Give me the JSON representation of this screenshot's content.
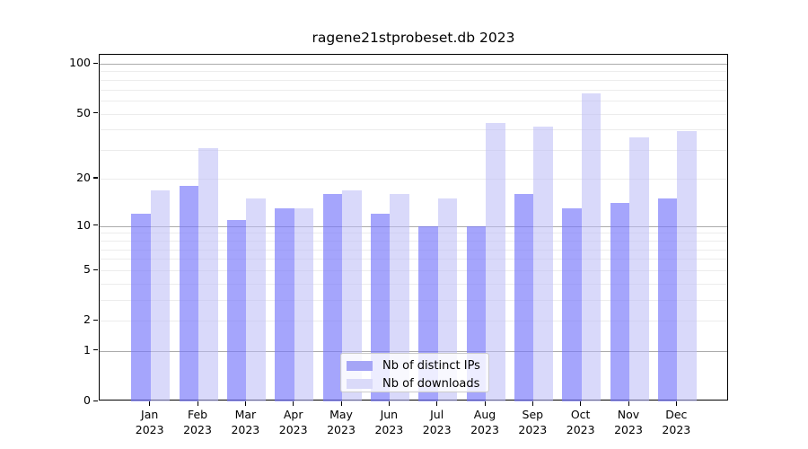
{
  "chart_data": {
    "type": "bar",
    "title": "ragene21stprobeset.db 2023",
    "categories": [
      {
        "month": "Jan",
        "year": "2023"
      },
      {
        "month": "Feb",
        "year": "2023"
      },
      {
        "month": "Mar",
        "year": "2023"
      },
      {
        "month": "Apr",
        "year": "2023"
      },
      {
        "month": "May",
        "year": "2023"
      },
      {
        "month": "Jun",
        "year": "2023"
      },
      {
        "month": "Jul",
        "year": "2023"
      },
      {
        "month": "Aug",
        "year": "2023"
      },
      {
        "month": "Sep",
        "year": "2023"
      },
      {
        "month": "Oct",
        "year": "2023"
      },
      {
        "month": "Nov",
        "year": "2023"
      },
      {
        "month": "Dec",
        "year": "2023"
      }
    ],
    "series": [
      {
        "name": "Nb of distinct IPs",
        "values": [
          12,
          18,
          11,
          13,
          16,
          12,
          10,
          10,
          16,
          13,
          14,
          15
        ],
        "fill": "rgba(118,118,250,0.66)",
        "legend_color": "#a5a5f6"
      },
      {
        "name": "Nb of downloads",
        "values": [
          17,
          31,
          15,
          13,
          17,
          16,
          15,
          44,
          42,
          66,
          36,
          39
        ],
        "fill": "rgba(188,188,246,0.56)",
        "legend_color": "#dadaf9"
      }
    ],
    "xlabel": "",
    "ylabel": "",
    "yscale": "log1p",
    "ylim": [
      0,
      100
    ],
    "y_ticks": [
      100,
      50,
      20,
      10,
      5,
      2,
      1,
      0
    ],
    "major_gridlines": [
      1,
      10,
      100
    ],
    "minor_gridlines": [
      2,
      3,
      4,
      5,
      6,
      7,
      8,
      9,
      20,
      30,
      40,
      50,
      60,
      70,
      80,
      90
    ],
    "grid": true,
    "legend_position": "lower center"
  },
  "colors": {
    "background": "#ffffff",
    "axis": "#000000",
    "grid_major": "#ababab",
    "grid_minor": "#ececec",
    "tick_label": "#000000"
  }
}
